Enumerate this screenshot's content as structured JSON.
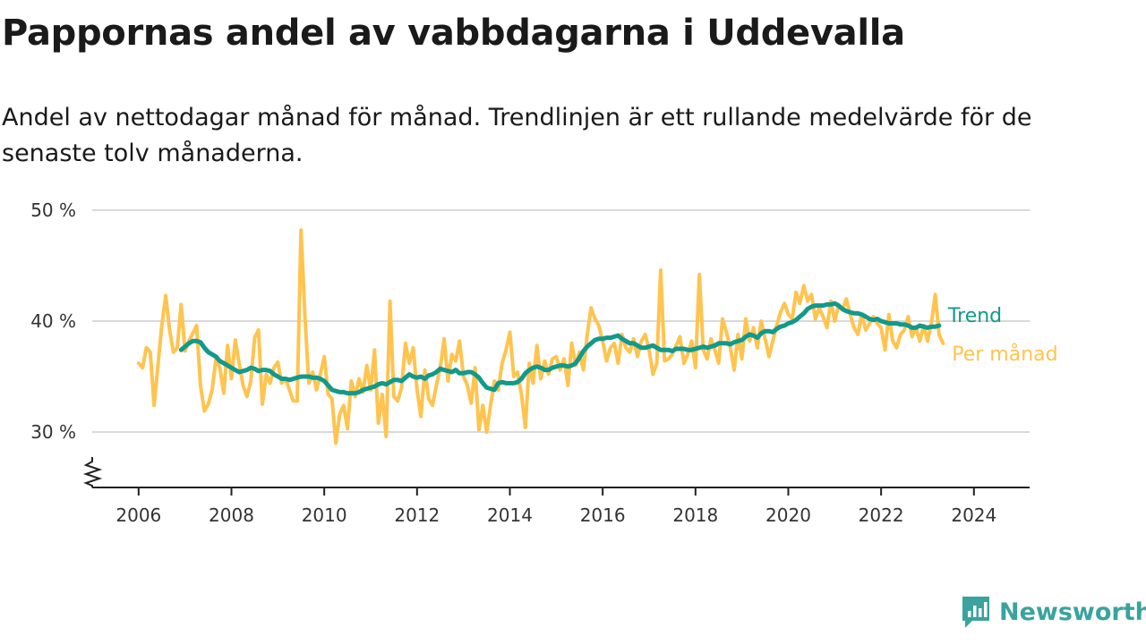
{
  "header": {
    "title": "Pappornas andel av vabbdagarna i Uddevalla",
    "subtitle": "Andel av nettodagar månad för månad. Trendlinjen är ett rullande medelvärde för de senaste tolv månaderna."
  },
  "brand": {
    "name": "Newsworthy",
    "color": "#3aa39d",
    "icon": "newsworthy-logo-icon"
  },
  "chart_data": {
    "type": "line",
    "title": "Pappornas andel av vabbdagarna i Uddevalla",
    "subtitle": "Andel av nettodagar månad för månad. Trendlinjen är ett rullande medelvärde för de senaste tolv månaderna.",
    "xlabel": "",
    "ylabel": "",
    "ylim": [
      25,
      50
    ],
    "xlim": [
      2005,
      2025.2
    ],
    "y_ticks": [
      {
        "value": 50,
        "label": "50 %"
      },
      {
        "value": 40,
        "label": "40 %"
      },
      {
        "value": 30,
        "label": "30 %"
      }
    ],
    "x_ticks": [
      {
        "value": 2006,
        "label": "2006"
      },
      {
        "value": 2008,
        "label": "2008"
      },
      {
        "value": 2010,
        "label": "2010"
      },
      {
        "value": 2012,
        "label": "2012"
      },
      {
        "value": 2014,
        "label": "2014"
      },
      {
        "value": 2016,
        "label": "2016"
      },
      {
        "value": 2018,
        "label": "2018"
      },
      {
        "value": 2020,
        "label": "2020"
      },
      {
        "value": 2022,
        "label": "2022"
      },
      {
        "value": 2024,
        "label": "2024"
      }
    ],
    "grid": true,
    "axis_break": true,
    "legend": "direct labels at line ends",
    "series": [
      {
        "name": "Per månad",
        "color": "#ffc44f",
        "start": "2006-01",
        "values": [
          36.2,
          35.8,
          37.6,
          37.2,
          32.4,
          36.0,
          39.6,
          42.3,
          39.2,
          37.2,
          37.6,
          41.5,
          37.3,
          38.2,
          38.9,
          39.6,
          34.2,
          31.9,
          32.5,
          33.8,
          36.6,
          35.8,
          33.5,
          37.8,
          34.8,
          38.3,
          36.2,
          34.2,
          33.2,
          34.6,
          38.5,
          39.2,
          32.5,
          35.2,
          34.4,
          35.8,
          36.3,
          34.4,
          34.8,
          33.8,
          32.8,
          32.8,
          48.2,
          40.4,
          34.4,
          35.4,
          33.8,
          35.2,
          36.8,
          33.4,
          33.0,
          29.0,
          31.6,
          32.4,
          30.3,
          34.6,
          33.2,
          34.8,
          33.6,
          36.0,
          33.8,
          37.4,
          30.8,
          33.4,
          29.6,
          41.8,
          33.2,
          32.8,
          34.0,
          38.0,
          36.2,
          37.6,
          33.8,
          31.4,
          35.6,
          33.0,
          32.4,
          34.2,
          35.8,
          38.4,
          34.6,
          37.0,
          36.4,
          38.2,
          35.0,
          34.2,
          32.6,
          35.8,
          30.2,
          32.4,
          30.0,
          32.4,
          34.6,
          33.8,
          36.2,
          37.4,
          39.0,
          35.0,
          35.4,
          33.4,
          30.4,
          36.2,
          34.4,
          37.8,
          34.8,
          36.4,
          35.2,
          36.6,
          36.8,
          35.6,
          36.6,
          34.2,
          38.0,
          36.0,
          37.2,
          35.6,
          38.8,
          41.2,
          40.2,
          39.6,
          38.2,
          36.4,
          37.6,
          38.0,
          36.2,
          38.8,
          37.6,
          37.2,
          38.4,
          36.8,
          38.2,
          38.8,
          37.4,
          35.2,
          36.2,
          44.6,
          36.4,
          36.6,
          37.0,
          37.8,
          38.6,
          36.2,
          37.0,
          38.2,
          35.8,
          44.2,
          37.4,
          36.6,
          38.4,
          37.4,
          36.2,
          40.2,
          39.0,
          37.6,
          35.6,
          38.8,
          36.6,
          40.2,
          38.2,
          39.4,
          37.6,
          40.0,
          38.4,
          36.8,
          38.2,
          39.6,
          40.8,
          41.6,
          40.6,
          40.2,
          42.6,
          41.6,
          43.2,
          41.8,
          42.4,
          40.2,
          41.2,
          40.4,
          39.4,
          41.8,
          40.0,
          41.4,
          41.0,
          42.0,
          40.6,
          39.4,
          38.8,
          40.6,
          39.2,
          39.8,
          40.4,
          39.8,
          39.4,
          37.4,
          40.6,
          38.2,
          37.6,
          38.8,
          39.2,
          40.4,
          38.6,
          39.4,
          38.2,
          39.6,
          38.2,
          39.8,
          42.4,
          38.8,
          38.0
        ]
      },
      {
        "name": "Trend",
        "color": "#12998a",
        "start": "2006-12",
        "values": [
          37.4,
          37.7,
          38.0,
          38.2,
          38.2,
          38.1,
          37.6,
          37.2,
          37.0,
          36.8,
          36.4,
          36.2,
          36.0,
          35.8,
          35.6,
          35.4,
          35.5,
          35.6,
          35.8,
          35.7,
          35.5,
          35.6,
          35.6,
          35.5,
          35.2,
          35.0,
          34.8,
          34.8,
          34.7,
          34.8,
          34.9,
          35.0,
          35.0,
          35.0,
          34.9,
          34.9,
          34.8,
          34.6,
          34.2,
          33.8,
          33.7,
          33.6,
          33.6,
          33.5,
          33.5,
          33.5,
          33.6,
          33.8,
          33.9,
          34.0,
          34.1,
          34.3,
          34.4,
          34.3,
          34.5,
          34.7,
          34.7,
          34.6,
          34.9,
          35.2,
          35.0,
          34.9,
          35.0,
          34.8,
          35.1,
          35.2,
          35.4,
          35.7,
          35.6,
          35.5,
          35.4,
          35.6,
          35.3,
          35.3,
          35.4,
          35.4,
          35.2,
          34.9,
          34.4,
          34.0,
          33.9,
          33.8,
          34.4,
          34.5,
          34.4,
          34.4,
          34.4,
          34.5,
          34.8,
          35.3,
          35.6,
          35.8,
          35.9,
          35.8,
          35.6,
          35.6,
          35.8,
          35.9,
          36.0,
          36.0,
          35.9,
          36.0,
          36.2,
          36.7,
          37.3,
          37.7,
          38.0,
          38.3,
          38.4,
          38.4,
          38.5,
          38.5,
          38.6,
          38.7,
          38.4,
          38.2,
          38.0,
          38.0,
          37.8,
          37.6,
          37.6,
          37.7,
          37.8,
          37.6,
          37.4,
          37.4,
          37.4,
          37.3,
          37.5,
          37.5,
          37.5,
          37.4,
          37.4,
          37.5,
          37.6,
          37.7,
          37.6,
          37.7,
          37.8,
          38.0,
          38.0,
          38.0,
          37.9,
          38.1,
          38.2,
          38.3,
          38.6,
          38.8,
          38.7,
          38.5,
          38.9,
          39.1,
          39.1,
          39.0,
          39.3,
          39.5,
          39.6,
          39.8,
          39.9,
          40.1,
          40.4,
          40.7,
          41.1,
          41.3,
          41.4,
          41.4,
          41.4,
          41.5,
          41.5,
          41.6,
          41.4,
          41.1,
          40.9,
          40.8,
          40.7,
          40.7,
          40.6,
          40.4,
          40.2,
          40.1,
          40.2,
          40.0,
          39.9,
          39.8,
          39.8,
          39.8,
          39.7,
          39.7,
          39.6,
          39.4,
          39.4,
          39.6,
          39.5,
          39.4,
          39.5,
          39.5,
          39.6
        ]
      }
    ]
  }
}
